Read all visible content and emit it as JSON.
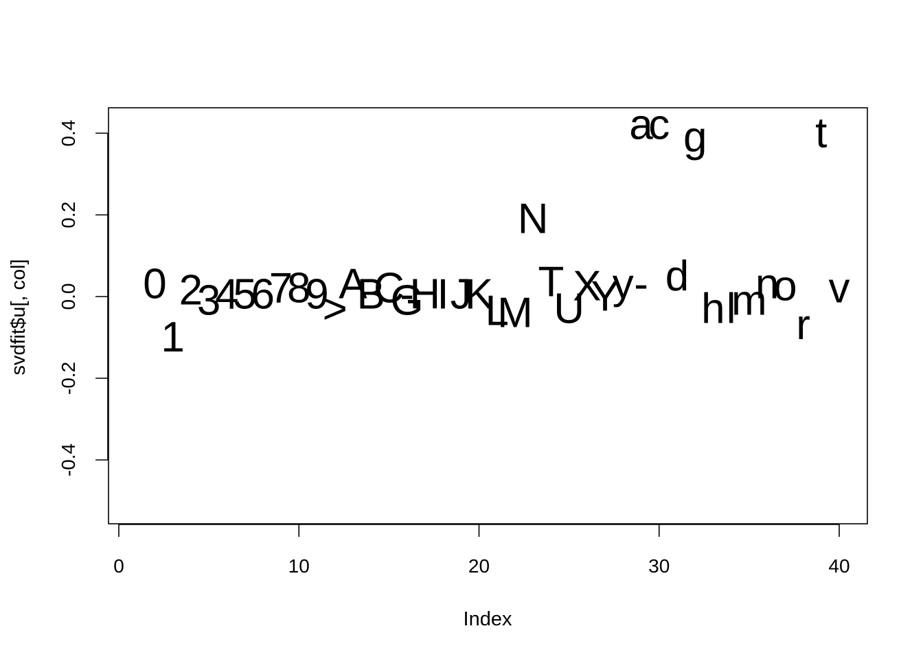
{
  "chart_data": {
    "type": "scatter",
    "title": "",
    "xlabel": "Index",
    "ylabel": "svdfit$u[, col]",
    "xlim": [
      0,
      40
    ],
    "ylim": [
      -0.5,
      0.4
    ],
    "xticks": [
      "0",
      "10",
      "20",
      "30",
      "40"
    ],
    "xtick_values": [
      0,
      10,
      20,
      30,
      40
    ],
    "yticks": [
      "-0.4",
      "-0.2",
      "0.0",
      "0.2",
      "0.4"
    ],
    "ytick_values": [
      -0.4,
      -0.2,
      0.0,
      0.2,
      0.4
    ],
    "grid": false,
    "points": [
      {
        "label": "0",
        "x": 2,
        "y": 0.03
      },
      {
        "label": "1",
        "x": 3,
        "y": -0.1
      },
      {
        "label": "2",
        "x": 4,
        "y": 0.015
      },
      {
        "label": "3",
        "x": 5,
        "y": -0.01
      },
      {
        "label": "4",
        "x": 6,
        "y": 0.005
      },
      {
        "label": "5",
        "x": 7,
        "y": 0.005
      },
      {
        "label": "6",
        "x": 8,
        "y": 0.005
      },
      {
        "label": "7",
        "x": 9,
        "y": 0.02
      },
      {
        "label": "8",
        "x": 10,
        "y": 0.02
      },
      {
        "label": "9",
        "x": 11,
        "y": 0.005
      },
      {
        "label": ">",
        "x": 12,
        "y": -0.03
      },
      {
        "label": "A",
        "x": 13,
        "y": 0.03
      },
      {
        "label": "B",
        "x": 14,
        "y": 0.005
      },
      {
        "label": "C",
        "x": 15,
        "y": 0.02
      },
      {
        "label": "-",
        "x": 16,
        "y": 0.005
      },
      {
        "label": "G",
        "x": 16,
        "y": -0.01
      },
      {
        "label": "H",
        "x": 17,
        "y": 0.005
      },
      {
        "label": "I",
        "x": 18,
        "y": 0.005
      },
      {
        "label": "J",
        "x": 19,
        "y": 0.005
      },
      {
        "label": "K",
        "x": 20,
        "y": 0.005
      },
      {
        "label": "L",
        "x": 21,
        "y": -0.035
      },
      {
        "label": "M",
        "x": 22,
        "y": -0.04
      },
      {
        "label": "N",
        "x": 23,
        "y": 0.19
      },
      {
        "label": "T",
        "x": 24,
        "y": 0.035
      },
      {
        "label": "U",
        "x": 25,
        "y": -0.03
      },
      {
        "label": "X",
        "x": 26,
        "y": 0.025
      },
      {
        "label": "Y",
        "x": 27,
        "y": 0.0
      },
      {
        "label": "y",
        "x": 28,
        "y": 0.03
      },
      {
        "label": "-",
        "x": 29,
        "y": 0.03
      },
      {
        "label": "a",
        "x": 29,
        "y": 0.42
      },
      {
        "label": "c",
        "x": 30,
        "y": 0.42
      },
      {
        "label": "d",
        "x": 31,
        "y": 0.05
      },
      {
        "label": "g",
        "x": 32,
        "y": 0.39
      },
      {
        "label": "h",
        "x": 33,
        "y": -0.03
      },
      {
        "label": "l",
        "x": 34,
        "y": -0.03
      },
      {
        "label": "m",
        "x": 35,
        "y": -0.01
      },
      {
        "label": "n",
        "x": 36,
        "y": 0.03
      },
      {
        "label": "o",
        "x": 37,
        "y": 0.025
      },
      {
        "label": "r",
        "x": 38,
        "y": -0.07
      },
      {
        "label": "t",
        "x": 39,
        "y": 0.4
      },
      {
        "label": "v",
        "x": 40,
        "y": 0.02
      }
    ]
  }
}
